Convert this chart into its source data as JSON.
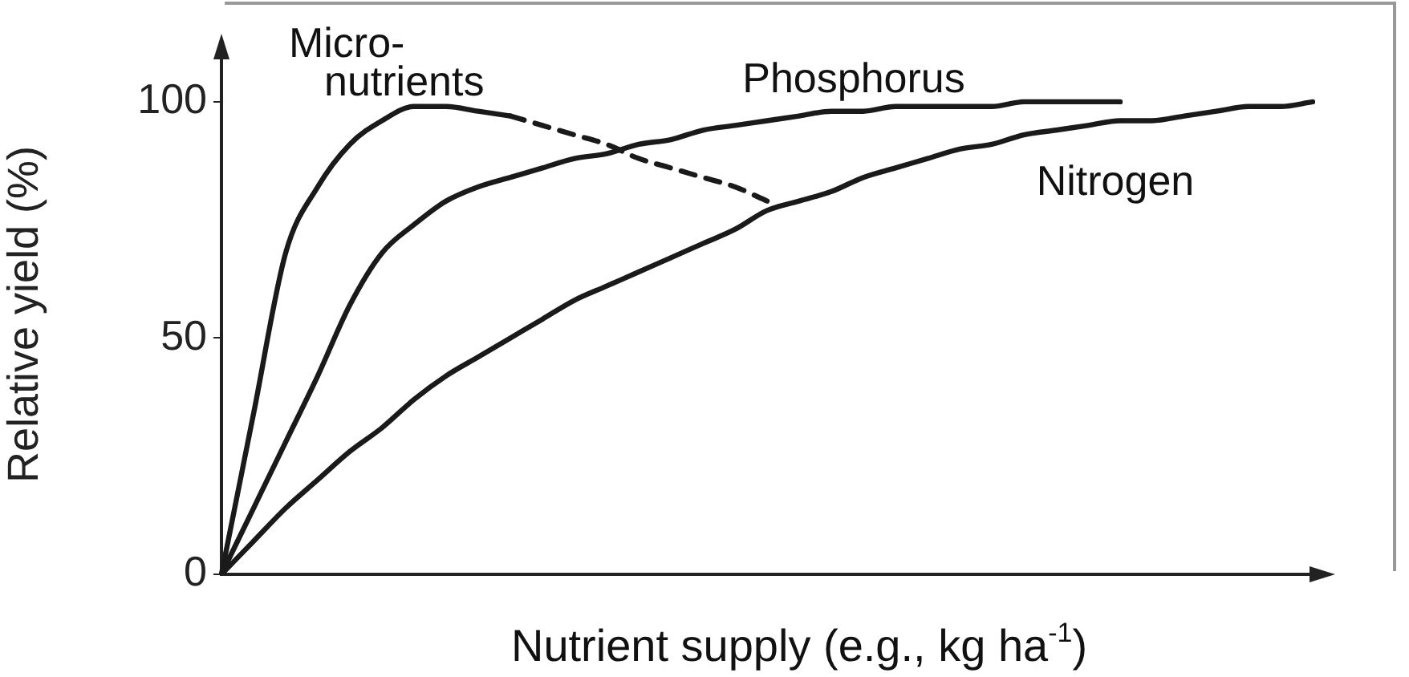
{
  "chart_data": {
    "type": "line",
    "xlabel": "Nutrient supply (e.g., kg ha$^{-1}$)",
    "ylabel": "Relative yield (%)",
    "categories": [
      null,
      null,
      null,
      null,
      null,
      null,
      null,
      null,
      null,
      null,
      null,
      null,
      null,
      null,
      null,
      null,
      null,
      null,
      null,
      null,
      null,
      null,
      null,
      null,
      null,
      null,
      null,
      null,
      null,
      null,
      null,
      null,
      null,
      null,
      null
    ],
    "ylim": [
      0,
      110
    ],
    "yticks": [
      0,
      50,
      100
    ],
    "grid": false,
    "legend": false,
    "marker": "none",
    "series": [
      {
        "name": "Micro-\nnutrients",
        "color": "#1a1a1a",
        "line_style": "solid",
        "values": [
          0,
          34,
          68,
          82,
          91,
          96,
          99,
          99,
          98,
          97,
          null,
          null,
          null,
          null,
          null,
          null,
          null,
          null,
          null,
          null,
          null,
          null,
          null,
          null,
          null,
          null,
          null,
          null,
          null,
          null,
          null,
          null,
          null,
          null,
          null
        ]
      },
      {
        "color": "#1a1a1a",
        "line_style": "dashed",
        "values": [
          null,
          null,
          null,
          null,
          null,
          null,
          null,
          null,
          null,
          97,
          95,
          93,
          91,
          88,
          86,
          84,
          82,
          79,
          null,
          null,
          null,
          null,
          null,
          null,
          null,
          null,
          null,
          null,
          null,
          null,
          null,
          null,
          null,
          null,
          null
        ]
      },
      {
        "name": "Phosphorus",
        "color": "#1a1a1a",
        "line_style": "solid",
        "values": [
          0,
          14,
          28,
          42,
          57,
          68,
          74,
          79,
          82,
          84,
          86,
          88,
          89,
          91,
          92,
          94,
          95,
          96,
          97,
          98,
          98,
          99,
          99,
          99,
          99,
          100,
          100,
          100,
          100,
          null,
          null,
          null,
          null,
          null,
          null
        ]
      },
      {
        "name": "Nitrogen",
        "color": "#1a1a1a",
        "line_style": "solid",
        "values": [
          0,
          7,
          14,
          20,
          26,
          31,
          37,
          42,
          46,
          50,
          54,
          58,
          61,
          64,
          67,
          70,
          73,
          77,
          79,
          81,
          84,
          86,
          88,
          90,
          91,
          93,
          94,
          95,
          96,
          96,
          97,
          98,
          99,
          99,
          100
        ]
      }
    ]
  }
}
